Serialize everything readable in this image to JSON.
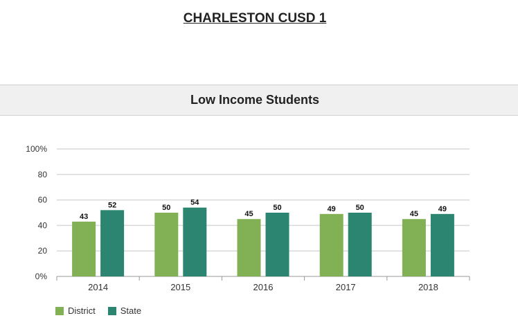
{
  "header": {
    "title": "CHARLESTON CUSD 1"
  },
  "section": {
    "title": "Low Income Students"
  },
  "colors": {
    "district": "#82b155",
    "state": "#2b8570",
    "grid": "#d8d8d8",
    "axis": "#999999"
  },
  "chart_data": {
    "type": "bar",
    "categories": [
      "2014",
      "2015",
      "2016",
      "2017",
      "2018"
    ],
    "series": [
      {
        "name": "District",
        "values": [
          43,
          50,
          45,
          49,
          45
        ]
      },
      {
        "name": "State",
        "values": [
          52,
          54,
          50,
          50,
          49
        ]
      }
    ],
    "ylim": [
      0,
      100
    ],
    "yticks": [
      "0%",
      "20",
      "40",
      "60",
      "80",
      "100%"
    ],
    "grid": true,
    "legend": "bottom-left"
  }
}
